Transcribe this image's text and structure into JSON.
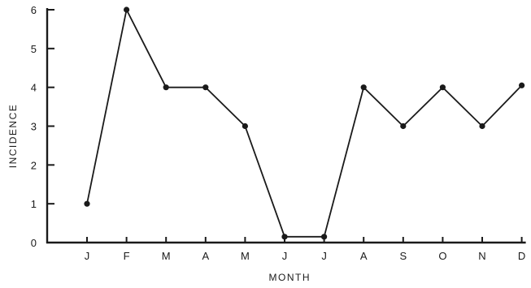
{
  "chart_data": {
    "type": "line",
    "title": "",
    "xlabel": "MONTH",
    "ylabel": "INCIDENCE",
    "categories": [
      "J",
      "F",
      "M",
      "A",
      "M",
      "J",
      "J",
      "A",
      "S",
      "O",
      "N",
      "D"
    ],
    "series": [
      {
        "values": [
          1,
          6,
          4,
          4,
          3,
          0.15,
          0.15,
          4,
          3,
          4,
          3,
          4.05
        ]
      }
    ],
    "ylim": [
      0,
      6
    ],
    "yticks": [
      0,
      1,
      2,
      3,
      4,
      5,
      6
    ],
    "grid": false,
    "legend": "none",
    "colors": {
      "ink": "#1a1a1a"
    }
  }
}
